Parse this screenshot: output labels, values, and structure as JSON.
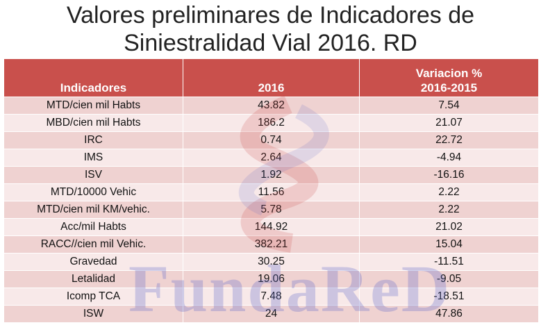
{
  "title": [
    "Valores preliminares de Indicadores de",
    "Siniestralidad Vial 2016. RD"
  ],
  "watermark": "FundaReD",
  "table": {
    "header": [
      "Indicadores",
      "2016",
      [
        "Variacion %",
        "2016-2015"
      ]
    ],
    "rows": [
      [
        "MTD/cien mil Habts",
        "43.82",
        "7.54"
      ],
      [
        "MBD/cien mil Habts",
        "186.2",
        "21.07"
      ],
      [
        "IRC",
        "0.74",
        "22.72"
      ],
      [
        "IMS",
        "2.64",
        "-4.94"
      ],
      [
        "ISV",
        "1.92",
        "-16.16"
      ],
      [
        "MTD/10000 Vehic",
        "11.56",
        "2.22"
      ],
      [
        "MTD/cien mil KM/vehic.",
        "5.78",
        "2.22"
      ],
      [
        "Acc/mil Habts",
        "144.92",
        "21.02"
      ],
      [
        "RACC//cien mil Vehic.",
        "382.21",
        "15.04"
      ],
      [
        "Gravedad",
        "30.25",
        "-11.51"
      ],
      [
        "Letalidad",
        "19.06",
        "-9.05"
      ],
      [
        "Icomp TCA",
        "7.48",
        "-18.51"
      ],
      [
        "ISW",
        "24",
        "47.86"
      ]
    ]
  }
}
